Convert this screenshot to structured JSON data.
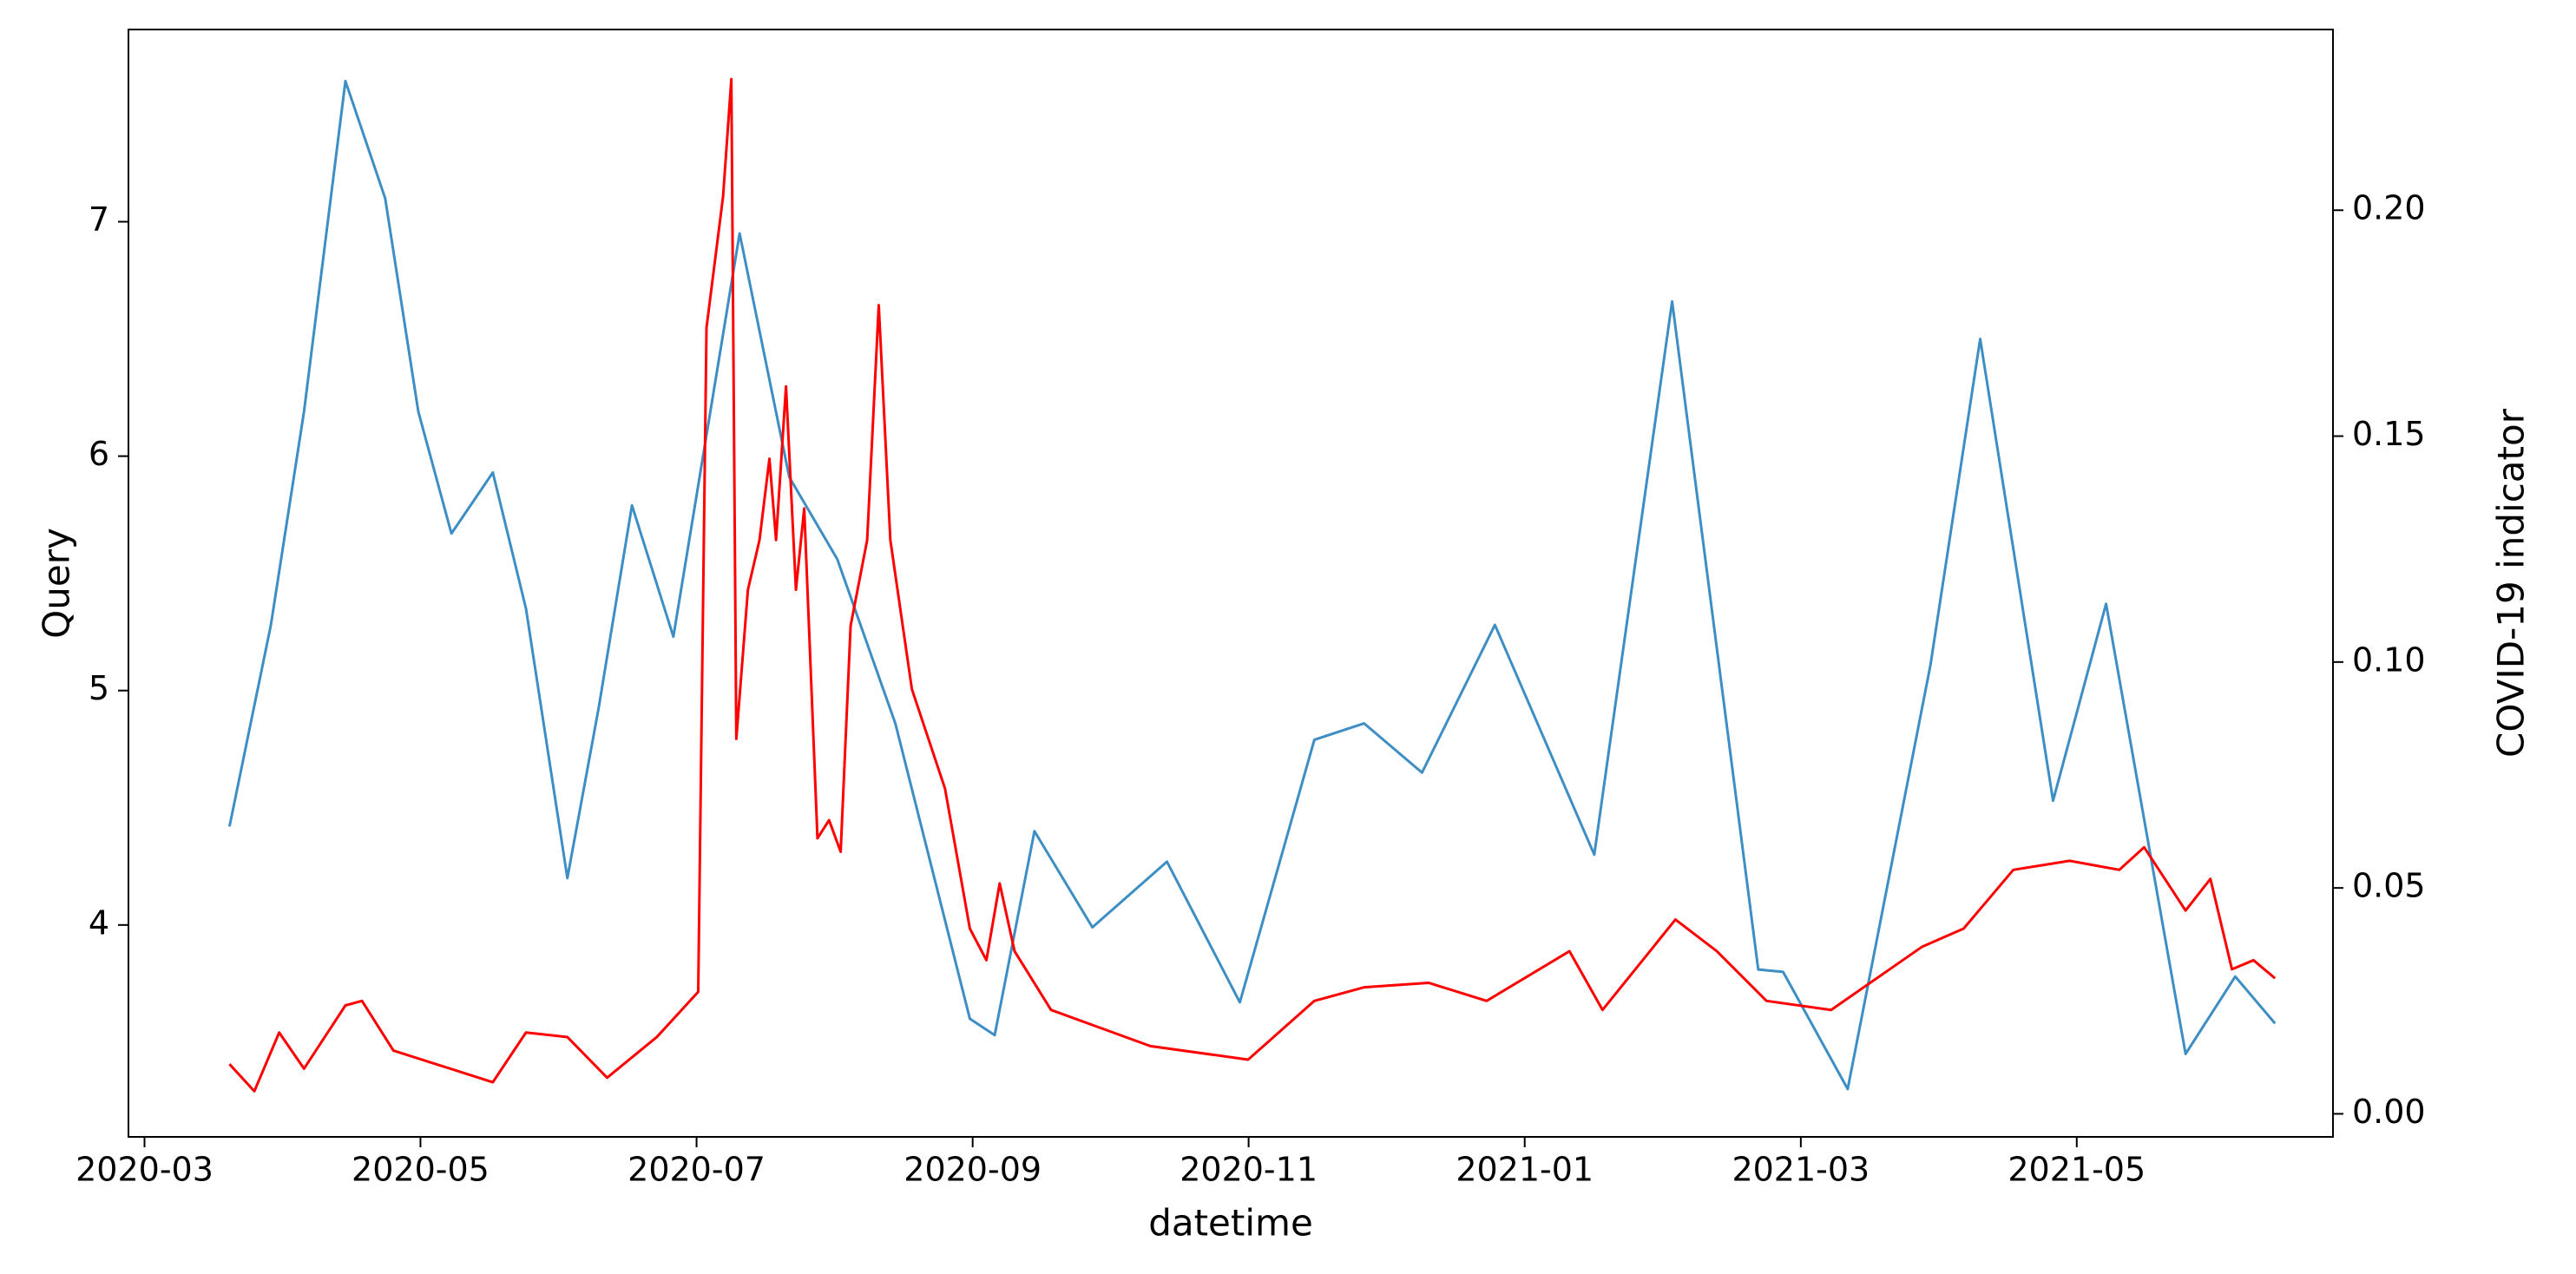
{
  "chart_data": {
    "type": "line",
    "xlabel": "datetime",
    "ylabel": "Query",
    "y2label": "COVID-19 indicator",
    "xlim": [
      2020.157,
      2021.488
    ],
    "xticks": [
      {
        "value": 2020.1667,
        "label": "2020-03"
      },
      {
        "value": 2020.3333,
        "label": "2020-05"
      },
      {
        "value": 2020.5,
        "label": "2020-07"
      },
      {
        "value": 2020.6667,
        "label": "2020-09"
      },
      {
        "value": 2020.8333,
        "label": "2020-11"
      },
      {
        "value": 2021.0,
        "label": "2021-01"
      },
      {
        "value": 2021.1667,
        "label": "2021-03"
      },
      {
        "value": 2021.3333,
        "label": "2021-05"
      }
    ],
    "ylim": [
      3.096,
      7.82
    ],
    "yticks": [
      4,
      5,
      6,
      7
    ],
    "y2lim": [
      -0.0051,
      0.24
    ],
    "y2ticks": [
      {
        "value": 0,
        "label": "0.00"
      },
      {
        "value": 0.05,
        "label": "0.05"
      },
      {
        "value": 0.1,
        "label": "0.10"
      },
      {
        "value": 0.15,
        "label": "0.15"
      },
      {
        "value": 0.2,
        "label": "0.20"
      }
    ],
    "series": [
      {
        "color": "#3d8ec4",
        "axis": "y",
        "x": [
          2020.218,
          2020.243,
          2020.263,
          2020.288,
          2020.312,
          2020.332,
          2020.352,
          2020.377,
          2020.397,
          2020.422,
          2020.441,
          2020.461,
          2020.486,
          2020.526,
          2020.556,
          2020.585,
          2020.62,
          2020.665,
          2020.68,
          2020.704,
          2020.739,
          2020.784,
          2020.828,
          2020.873,
          2020.903,
          2020.938,
          2020.982,
          2021.042,
          2021.089,
          2021.141,
          2021.156,
          2021.195,
          2021.245,
          2021.275,
          2021.319,
          2021.351,
          2021.399,
          2021.429,
          2021.453
        ],
        "values": [
          4.42,
          5.28,
          6.19,
          7.6,
          7.1,
          6.19,
          5.67,
          5.93,
          5.35,
          4.2,
          4.93,
          5.79,
          5.23,
          6.95,
          5.91,
          5.56,
          4.86,
          3.6,
          3.53,
          4.4,
          3.99,
          4.27,
          3.67,
          4.79,
          4.86,
          4.65,
          5.28,
          4.3,
          6.66,
          3.81,
          3.8,
          3.3,
          5.11,
          6.5,
          4.53,
          5.37,
          3.45,
          3.78,
          3.58
        ]
      },
      {
        "color": "#ff0000",
        "axis": "y2",
        "x": [
          2020.218,
          2020.233,
          2020.248,
          2020.263,
          2020.288,
          2020.298,
          2020.317,
          2020.377,
          2020.397,
          2020.422,
          2020.446,
          2020.476,
          2020.501,
          2020.506,
          2020.516,
          2020.521,
          2020.524,
          2020.531,
          2020.538,
          2020.544,
          2020.548,
          2020.554,
          2020.56,
          2020.565,
          2020.573,
          2020.58,
          2020.587,
          2020.593,
          2020.603,
          2020.61,
          2020.617,
          2020.63,
          2020.65,
          2020.665,
          2020.675,
          2020.683,
          2020.692,
          2020.714,
          2020.774,
          2020.833,
          2020.873,
          2020.903,
          2020.942,
          2020.977,
          2021.027,
          2021.047,
          2021.091,
          2021.116,
          2021.146,
          2021.185,
          2021.24,
          2021.265,
          2021.295,
          2021.329,
          2021.359,
          2021.374,
          2021.399,
          2021.414,
          2021.427,
          2021.44,
          2021.453
        ],
        "values": [
          0.011,
          0.005,
          0.018,
          0.01,
          0.024,
          0.025,
          0.014,
          0.007,
          0.018,
          0.017,
          0.008,
          0.017,
          0.027,
          0.174,
          0.203,
          0.229,
          0.083,
          0.116,
          0.127,
          0.145,
          0.127,
          0.161,
          0.116,
          0.134,
          0.061,
          0.065,
          0.058,
          0.108,
          0.127,
          0.179,
          0.127,
          0.094,
          0.072,
          0.041,
          0.034,
          0.051,
          0.036,
          0.023,
          0.015,
          0.012,
          0.025,
          0.028,
          0.029,
          0.025,
          0.036,
          0.023,
          0.043,
          0.036,
          0.025,
          0.023,
          0.037,
          0.041,
          0.054,
          0.056,
          0.054,
          0.059,
          0.045,
          0.052,
          0.032,
          0.034,
          0.03
        ]
      }
    ]
  }
}
